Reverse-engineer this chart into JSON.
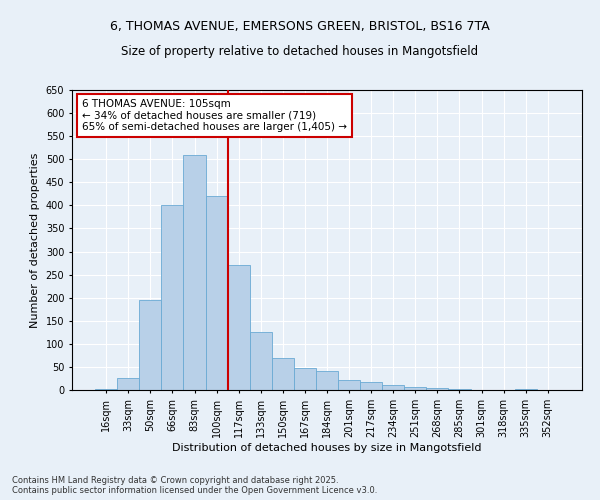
{
  "title_line1": "6, THOMAS AVENUE, EMERSONS GREEN, BRISTOL, BS16 7TA",
  "title_line2": "Size of property relative to detached houses in Mangotsfield",
  "xlabel": "Distribution of detached houses by size in Mangotsfield",
  "ylabel": "Number of detached properties",
  "footer_line1": "Contains HM Land Registry data © Crown copyright and database right 2025.",
  "footer_line2": "Contains public sector information licensed under the Open Government Licence v3.0.",
  "bin_labels": [
    "16sqm",
    "33sqm",
    "50sqm",
    "66sqm",
    "83sqm",
    "100sqm",
    "117sqm",
    "133sqm",
    "150sqm",
    "167sqm",
    "184sqm",
    "201sqm",
    "217sqm",
    "234sqm",
    "251sqm",
    "268sqm",
    "285sqm",
    "301sqm",
    "318sqm",
    "335sqm",
    "352sqm"
  ],
  "bar_values": [
    3,
    25,
    195,
    400,
    510,
    420,
    270,
    125,
    70,
    48,
    42,
    22,
    18,
    10,
    6,
    4,
    2,
    0,
    0,
    2,
    0
  ],
  "bar_color": "#b8d0e8",
  "bar_edge_color": "#6aaad4",
  "vline_color": "#cc0000",
  "annotation_text": "6 THOMAS AVENUE: 105sqm\n← 34% of detached houses are smaller (719)\n65% of semi-detached houses are larger (1,405) →",
  "annotation_box_color": "white",
  "annotation_box_edgecolor": "#cc0000",
  "ylim": [
    0,
    650
  ],
  "yticks": [
    0,
    50,
    100,
    150,
    200,
    250,
    300,
    350,
    400,
    450,
    500,
    550,
    600,
    650
  ],
  "background_color": "#e8f0f8",
  "grid_color": "white",
  "title_fontsize": 9,
  "subtitle_fontsize": 8.5,
  "axis_label_fontsize": 8,
  "ylabel_fontsize": 8,
  "tick_fontsize": 7,
  "annotation_fontsize": 7.5,
  "vline_x_index": 5.5
}
